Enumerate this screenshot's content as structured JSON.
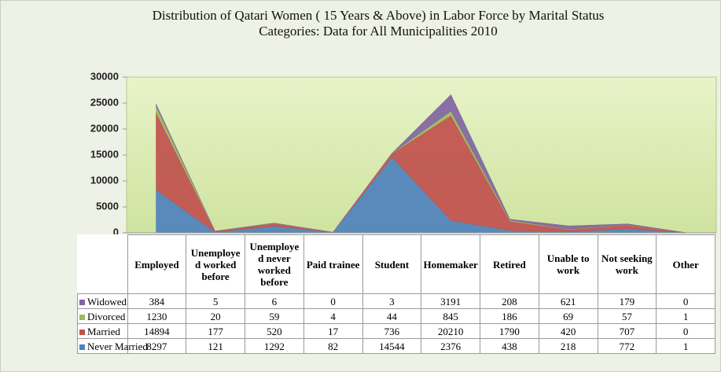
{
  "chart_data": {
    "type": "stacked_area",
    "title": "Distribution of Qatari Women ( 15 Years & Above) in Labor Force by Marital Status",
    "subtitle": "Categories:  Data for All Municipalities 2010",
    "categories": [
      "Employed",
      "Unemployed worked before",
      "Unemployed never worked before",
      "Paid trainee",
      "Student",
      "Homemaker",
      "Retired",
      "Unable to work",
      "Not seeking work",
      "Other"
    ],
    "series": [
      {
        "name": "Never Married",
        "color": "#4f81bd",
        "values": [
          8297,
          121,
          1292,
          82,
          14544,
          2376,
          438,
          218,
          772,
          1
        ]
      },
      {
        "name": "Married",
        "color": "#c0504d",
        "values": [
          14894,
          177,
          520,
          17,
          736,
          20210,
          1790,
          420,
          707,
          0
        ]
      },
      {
        "name": "Divorced",
        "color": "#9bbb59",
        "values": [
          1230,
          20,
          59,
          4,
          44,
          845,
          186,
          69,
          57,
          1
        ]
      },
      {
        "name": "Widowed",
        "color": "#8064a2",
        "values": [
          384,
          5,
          6,
          0,
          3,
          3191,
          208,
          621,
          179,
          0
        ]
      }
    ],
    "ylim": [
      0,
      30000
    ],
    "yticks": [
      0,
      5000,
      10000,
      15000,
      20000,
      25000,
      30000
    ]
  }
}
